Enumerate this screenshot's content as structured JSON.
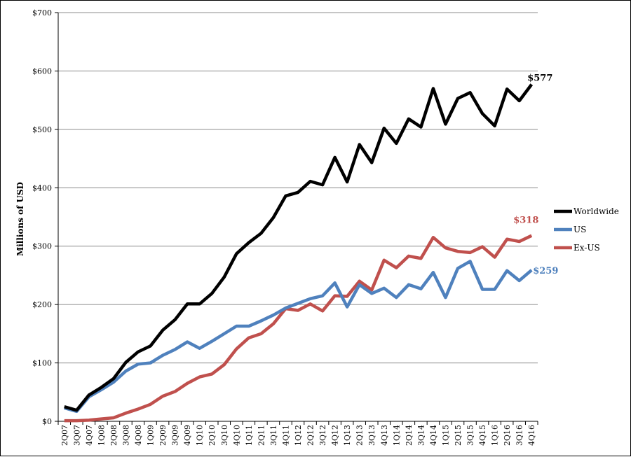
{
  "chart_data": {
    "type": "line",
    "ylabel": "Millions of USD",
    "xlabel": "",
    "ylim": [
      0,
      700
    ],
    "yticks": [
      0,
      100,
      200,
      300,
      400,
      500,
      600,
      700
    ],
    "ytick_labels": [
      "$0",
      "$100",
      "$200",
      "$300",
      "$400",
      "$500",
      "$600",
      "$700"
    ],
    "grid": "horizontal",
    "legend_placement": "right",
    "categories": [
      "2Q07",
      "3Q07",
      "4Q07",
      "1Q08",
      "2Q08",
      "3Q08",
      "4Q08",
      "1Q09",
      "2Q09",
      "3Q09",
      "4Q09",
      "1Q10",
      "2Q10",
      "3Q10",
      "4Q10",
      "1Q11",
      "2Q11",
      "3Q11",
      "4Q11",
      "1Q12",
      "2Q12",
      "3Q12",
      "4Q12",
      "1Q13",
      "2Q13",
      "3Q13",
      "4Q13",
      "1Q14",
      "2Q14",
      "3Q14",
      "4Q14",
      "1Q15",
      "2Q15",
      "3Q15",
      "4Q15",
      "1Q16",
      "2Q16",
      "3Q16",
      "4Q16"
    ],
    "series": [
      {
        "name": "Worldwide",
        "color": "#000000",
        "values": [
          25,
          19,
          45,
          58,
          73,
          101,
          119,
          129,
          156,
          174,
          201,
          201,
          219,
          247,
          287,
          306,
          322,
          349,
          386,
          392,
          411,
          405,
          452,
          410,
          474,
          443,
          502,
          476,
          518,
          504,
          570,
          509,
          553,
          563,
          527,
          506,
          569,
          549,
          577
        ],
        "end_label": "$577"
      },
      {
        "name": "US",
        "color": "#4f81bd",
        "values": [
          23,
          17,
          42,
          54,
          67,
          86,
          98,
          100,
          113,
          123,
          136,
          125,
          137,
          150,
          163,
          163,
          172,
          182,
          194,
          202,
          210,
          215,
          237,
          196,
          234,
          219,
          228,
          212,
          234,
          227,
          255,
          212,
          262,
          274,
          226,
          226,
          258,
          241,
          259
        ],
        "end_label": "$259"
      },
      {
        "name": "Ex-US",
        "color": "#c0504d",
        "values": [
          1,
          1,
          2,
          4,
          6,
          14,
          21,
          29,
          43,
          51,
          65,
          76,
          81,
          97,
          124,
          143,
          150,
          167,
          193,
          190,
          201,
          189,
          215,
          214,
          240,
          225,
          276,
          263,
          283,
          279,
          315,
          297,
          291,
          289,
          299,
          281,
          312,
          308,
          318
        ],
        "end_label": "$318"
      }
    ]
  }
}
